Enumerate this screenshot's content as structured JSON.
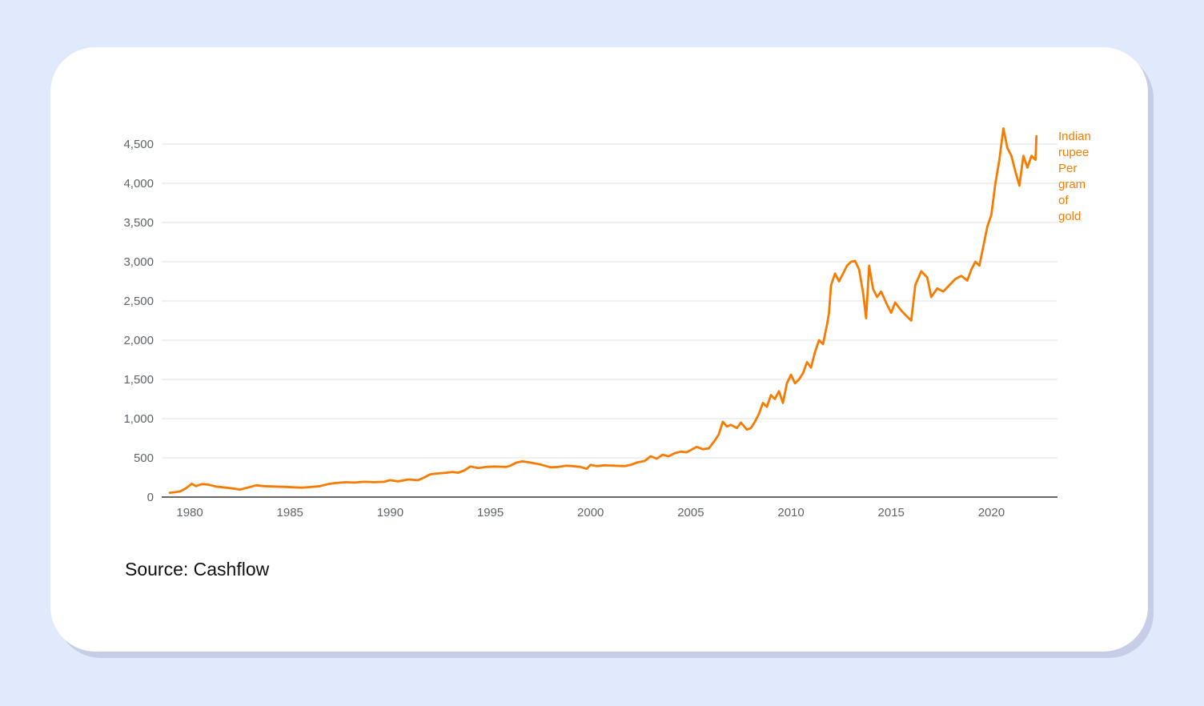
{
  "source_note": "Source: Cashflow",
  "colors": {
    "background": "#e1eafc",
    "card": "#ffffff",
    "line": "#f57c00",
    "grid": "#e6e6e6",
    "axis": "#333333",
    "tick_text": "#5f6368"
  },
  "chart_data": {
    "type": "line",
    "title": "",
    "xlabel": "",
    "ylabel": "",
    "xlim": [
      1978.6,
      2023.3
    ],
    "ylim": [
      0,
      4500
    ],
    "x_ticks": [
      1980,
      1985,
      1990,
      1995,
      2000,
      2005,
      2010,
      2015,
      2020
    ],
    "x_tick_labels": [
      "1980",
      "1985",
      "1990",
      "1995",
      "2000",
      "2005",
      "2010",
      "2015",
      "2020"
    ],
    "y_ticks": [
      0,
      500,
      1000,
      1500,
      2000,
      2500,
      3000,
      3500,
      4000,
      4500
    ],
    "y_tick_labels": [
      "0",
      "500",
      "1,000",
      "1,500",
      "2,000",
      "2,500",
      "3,000",
      "3,500",
      "4,000",
      "4,500"
    ],
    "grid": true,
    "legend_position": "right, at end of line",
    "series": [
      {
        "name": "Indian rupee Per gram of gold",
        "label_lines": [
          "Indian",
          "rupee",
          "Per",
          "gram",
          "of",
          "gold"
        ],
        "color": "#f57c00",
        "points": [
          [
            1979.0,
            55
          ],
          [
            1979.5,
            70
          ],
          [
            1979.8,
            110
          ],
          [
            1980.1,
            170
          ],
          [
            1980.3,
            140
          ],
          [
            1980.6,
            165
          ],
          [
            1980.9,
            160
          ],
          [
            1981.3,
            135
          ],
          [
            1981.8,
            120
          ],
          [
            1982.3,
            105
          ],
          [
            1982.5,
            95
          ],
          [
            1982.8,
            115
          ],
          [
            1983.1,
            135
          ],
          [
            1983.3,
            150
          ],
          [
            1983.7,
            140
          ],
          [
            1984.2,
            135
          ],
          [
            1984.8,
            130
          ],
          [
            1985.2,
            125
          ],
          [
            1985.6,
            120
          ],
          [
            1986.0,
            128
          ],
          [
            1986.5,
            140
          ],
          [
            1986.9,
            165
          ],
          [
            1987.3,
            180
          ],
          [
            1987.8,
            190
          ],
          [
            1988.2,
            185
          ],
          [
            1988.7,
            195
          ],
          [
            1989.2,
            190
          ],
          [
            1989.7,
            195
          ],
          [
            1990.0,
            215
          ],
          [
            1990.4,
            200
          ],
          [
            1990.9,
            225
          ],
          [
            1991.4,
            215
          ],
          [
            1991.7,
            250
          ],
          [
            1992.0,
            290
          ],
          [
            1992.3,
            300
          ],
          [
            1992.8,
            310
          ],
          [
            1993.1,
            320
          ],
          [
            1993.4,
            310
          ],
          [
            1993.7,
            340
          ],
          [
            1994.0,
            390
          ],
          [
            1994.4,
            370
          ],
          [
            1994.8,
            385
          ],
          [
            1995.2,
            390
          ],
          [
            1995.8,
            385
          ],
          [
            1996.0,
            400
          ],
          [
            1996.3,
            440
          ],
          [
            1996.6,
            455
          ],
          [
            1997.0,
            440
          ],
          [
            1997.5,
            415
          ],
          [
            1998.0,
            380
          ],
          [
            1998.4,
            385
          ],
          [
            1998.8,
            400
          ],
          [
            1999.1,
            395
          ],
          [
            1999.5,
            385
          ],
          [
            1999.8,
            360
          ],
          [
            2000.0,
            410
          ],
          [
            2000.3,
            395
          ],
          [
            2000.7,
            405
          ],
          [
            2001.2,
            400
          ],
          [
            2001.7,
            395
          ],
          [
            2002.0,
            410
          ],
          [
            2002.3,
            440
          ],
          [
            2002.7,
            460
          ],
          [
            2003.0,
            520
          ],
          [
            2003.3,
            490
          ],
          [
            2003.6,
            540
          ],
          [
            2003.9,
            520
          ],
          [
            2004.2,
            560
          ],
          [
            2004.5,
            580
          ],
          [
            2004.8,
            570
          ],
          [
            2005.0,
            600
          ],
          [
            2005.3,
            640
          ],
          [
            2005.6,
            610
          ],
          [
            2005.9,
            620
          ],
          [
            2006.2,
            720
          ],
          [
            2006.4,
            800
          ],
          [
            2006.6,
            960
          ],
          [
            2006.8,
            900
          ],
          [
            2007.0,
            920
          ],
          [
            2007.3,
            880
          ],
          [
            2007.5,
            950
          ],
          [
            2007.8,
            860
          ],
          [
            2008.0,
            880
          ],
          [
            2008.2,
            960
          ],
          [
            2008.4,
            1060
          ],
          [
            2008.6,
            1200
          ],
          [
            2008.8,
            1150
          ],
          [
            2009.0,
            1300
          ],
          [
            2009.2,
            1250
          ],
          [
            2009.4,
            1350
          ],
          [
            2009.6,
            1200
          ],
          [
            2009.8,
            1450
          ],
          [
            2010.0,
            1560
          ],
          [
            2010.2,
            1450
          ],
          [
            2010.4,
            1500
          ],
          [
            2010.6,
            1580
          ],
          [
            2010.8,
            1720
          ],
          [
            2011.0,
            1650
          ],
          [
            2011.2,
            1850
          ],
          [
            2011.4,
            2000
          ],
          [
            2011.6,
            1950
          ],
          [
            2011.8,
            2200
          ],
          [
            2011.9,
            2350
          ],
          [
            2012.0,
            2700
          ],
          [
            2012.2,
            2850
          ],
          [
            2012.4,
            2750
          ],
          [
            2012.6,
            2850
          ],
          [
            2012.8,
            2950
          ],
          [
            2013.0,
            3000
          ],
          [
            2013.2,
            3010
          ],
          [
            2013.4,
            2900
          ],
          [
            2013.6,
            2600
          ],
          [
            2013.75,
            2280
          ],
          [
            2013.9,
            2950
          ],
          [
            2014.1,
            2650
          ],
          [
            2014.3,
            2550
          ],
          [
            2014.5,
            2620
          ],
          [
            2014.8,
            2450
          ],
          [
            2015.0,
            2350
          ],
          [
            2015.2,
            2480
          ],
          [
            2015.5,
            2380
          ],
          [
            2015.8,
            2300
          ],
          [
            2016.0,
            2250
          ],
          [
            2016.2,
            2700
          ],
          [
            2016.5,
            2880
          ],
          [
            2016.8,
            2800
          ],
          [
            2017.0,
            2550
          ],
          [
            2017.3,
            2660
          ],
          [
            2017.6,
            2620
          ],
          [
            2017.9,
            2700
          ],
          [
            2018.2,
            2780
          ],
          [
            2018.5,
            2820
          ],
          [
            2018.8,
            2760
          ],
          [
            2019.0,
            2900
          ],
          [
            2019.2,
            3000
          ],
          [
            2019.4,
            2950
          ],
          [
            2019.6,
            3200
          ],
          [
            2019.8,
            3450
          ],
          [
            2020.0,
            3600
          ],
          [
            2020.2,
            4000
          ],
          [
            2020.4,
            4300
          ],
          [
            2020.6,
            4700
          ],
          [
            2020.8,
            4450
          ],
          [
            2021.0,
            4350
          ],
          [
            2021.2,
            4150
          ],
          [
            2021.4,
            3970
          ],
          [
            2021.6,
            4350
          ],
          [
            2021.8,
            4200
          ],
          [
            2022.0,
            4350
          ],
          [
            2022.2,
            4300
          ],
          [
            2022.25,
            4600
          ]
        ]
      }
    ]
  }
}
